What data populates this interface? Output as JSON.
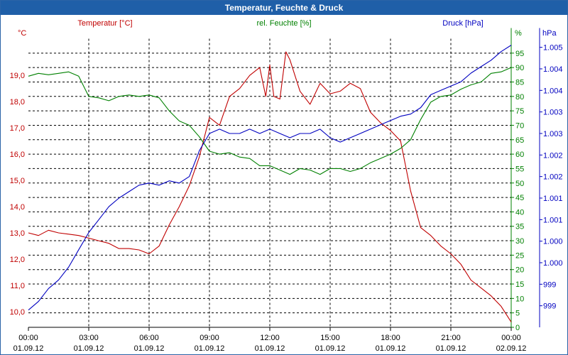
{
  "window": {
    "title": "Temperatur, Feuchte & Druck"
  },
  "colors": {
    "temperature": "#c00000",
    "humidity": "#008000",
    "pressure": "#0000c0",
    "grid": "#000000"
  },
  "chart_data": {
    "type": "line",
    "title": "Temperatur, Feuchte & Druck",
    "grid": true,
    "x_ticks": [
      {
        "time": "00:00",
        "date": "01.09.12"
      },
      {
        "time": "03:00",
        "date": "01.09.12"
      },
      {
        "time": "06:00",
        "date": "01.09.12"
      },
      {
        "time": "09:00",
        "date": "01.09.12"
      },
      {
        "time": "12:00",
        "date": "01.09.12"
      },
      {
        "time": "15:00",
        "date": "01.09.12"
      },
      {
        "time": "18:00",
        "date": "01.09.12"
      },
      {
        "time": "21:00",
        "date": "01.09.12"
      },
      {
        "time": "00:00",
        "date": "02.09.12"
      }
    ],
    "x_range_hours": [
      0,
      24
    ],
    "axes": {
      "temperature": {
        "unit_label": "°C",
        "series_label": "Temperatur [°C]",
        "range": [
          9.4,
          20.4
        ],
        "ticks": [
          "19,0",
          "18,0",
          "17,0",
          "16,0",
          "15,0",
          "14,0",
          "13,0",
          "12,0",
          "11,0",
          "10,0"
        ]
      },
      "humidity": {
        "unit_label": "%",
        "series_label": "rel. Feuchte [%]",
        "range": [
          0,
          100
        ],
        "ticks": [
          "95",
          "90",
          "85",
          "80",
          "75",
          "70",
          "65",
          "60",
          "55",
          "50",
          "45",
          "40",
          "35",
          "30",
          "25",
          "20",
          "15",
          "10",
          "5",
          "0"
        ]
      },
      "pressure": {
        "unit_label": "hPa",
        "series_label": "Druck [hPa]",
        "range": [
          998.5,
          1005.2
        ],
        "ticks": [
          "1.005",
          "1.004",
          "1.004",
          "1.003",
          "1.003",
          "1.002",
          "1.002",
          "1.001",
          "1.001",
          "1.000",
          "1.000",
          "999",
          "999"
        ],
        "tick_values": [
          1005.0,
          1004.5,
          1004.0,
          1003.5,
          1003.0,
          1002.5,
          1002.0,
          1001.5,
          1001.0,
          1000.5,
          1000.0,
          999.5,
          999.0
        ]
      }
    },
    "series": [
      {
        "name": "Temperatur [°C]",
        "axis": "temperature",
        "x": [
          0,
          0.5,
          1,
          1.5,
          2,
          2.5,
          3,
          3.5,
          4,
          4.5,
          5,
          5.5,
          6,
          6.5,
          7,
          7.5,
          8,
          8.5,
          9,
          9.5,
          10,
          10.5,
          11,
          11.5,
          11.8,
          12,
          12.2,
          12.5,
          12.8,
          13,
          13.5,
          14,
          14.5,
          15,
          15.5,
          16,
          16.5,
          17,
          17.5,
          18,
          18.5,
          19,
          19.5,
          20,
          20.5,
          21,
          21.5,
          22,
          22.5,
          23,
          23.5,
          24
        ],
        "y": [
          13.0,
          12.9,
          13.1,
          13.0,
          12.95,
          12.9,
          12.8,
          12.7,
          12.6,
          12.4,
          12.4,
          12.35,
          12.2,
          12.5,
          13.3,
          14.0,
          14.8,
          15.9,
          17.4,
          17.1,
          18.2,
          18.5,
          19.0,
          19.3,
          18.2,
          19.4,
          18.2,
          18.1,
          19.9,
          19.6,
          18.4,
          17.9,
          18.7,
          18.3,
          18.4,
          18.7,
          18.5,
          17.6,
          17.2,
          16.9,
          16.5,
          14.6,
          13.2,
          12.9,
          12.5,
          12.2,
          11.8,
          11.2,
          10.9,
          10.6,
          10.2,
          9.6
        ]
      },
      {
        "name": "rel. Feuchte [%]",
        "axis": "humidity",
        "x": [
          0,
          0.5,
          1,
          1.5,
          2,
          2.5,
          3,
          3.5,
          4,
          4.5,
          5,
          5.5,
          6,
          6.5,
          7,
          7.5,
          8,
          8.5,
          9,
          9.5,
          10,
          10.5,
          11,
          11.5,
          12,
          12.5,
          13,
          13.5,
          14,
          14.5,
          15,
          15.5,
          16,
          16.5,
          17,
          17.5,
          18,
          18.5,
          19,
          19.5,
          20,
          20.5,
          21,
          21.5,
          22,
          22.5,
          23,
          23.5,
          24
        ],
        "y": [
          87,
          88,
          87.5,
          88,
          88.5,
          87,
          80,
          79.5,
          78.5,
          80,
          80.5,
          80,
          80.5,
          79.5,
          75,
          71.5,
          70,
          66,
          61,
          60,
          60.5,
          59,
          58.5,
          56,
          56,
          54.5,
          53,
          55,
          54.5,
          53,
          55,
          55,
          54,
          55,
          57,
          58.5,
          60,
          62,
          65,
          72,
          78,
          80,
          80.5,
          82.5,
          84,
          85,
          88,
          88.5,
          90
        ]
      },
      {
        "name": "Druck [hPa]",
        "axis": "pressure",
        "x": [
          0,
          0.5,
          1,
          1.5,
          2,
          2.5,
          3,
          3.5,
          4,
          4.5,
          5,
          5.5,
          6,
          6.5,
          7,
          7.5,
          8,
          8.5,
          9,
          9.5,
          10,
          10.5,
          11,
          11.5,
          12,
          12.5,
          13,
          13.5,
          14,
          14.5,
          15,
          15.5,
          16,
          16.5,
          17,
          17.5,
          18,
          18.5,
          19,
          19.5,
          20,
          20.5,
          21,
          21.5,
          22,
          22.5,
          23,
          23.5,
          24
        ],
        "y": [
          998.9,
          999.1,
          999.4,
          999.6,
          999.9,
          1000.3,
          1000.7,
          1001.0,
          1001.3,
          1001.5,
          1001.65,
          1001.8,
          1001.85,
          1001.8,
          1001.9,
          1001.85,
          1002.0,
          1002.6,
          1003.0,
          1003.1,
          1003.0,
          1003.0,
          1003.1,
          1003.0,
          1003.1,
          1003.0,
          1002.9,
          1003.0,
          1003.0,
          1003.1,
          1002.9,
          1002.8,
          1002.9,
          1003.0,
          1003.1,
          1003.2,
          1003.3,
          1003.4,
          1003.45,
          1003.6,
          1003.9,
          1004.0,
          1004.1,
          1004.2,
          1004.4,
          1004.55,
          1004.7,
          1004.9,
          1005.05
        ]
      }
    ]
  }
}
